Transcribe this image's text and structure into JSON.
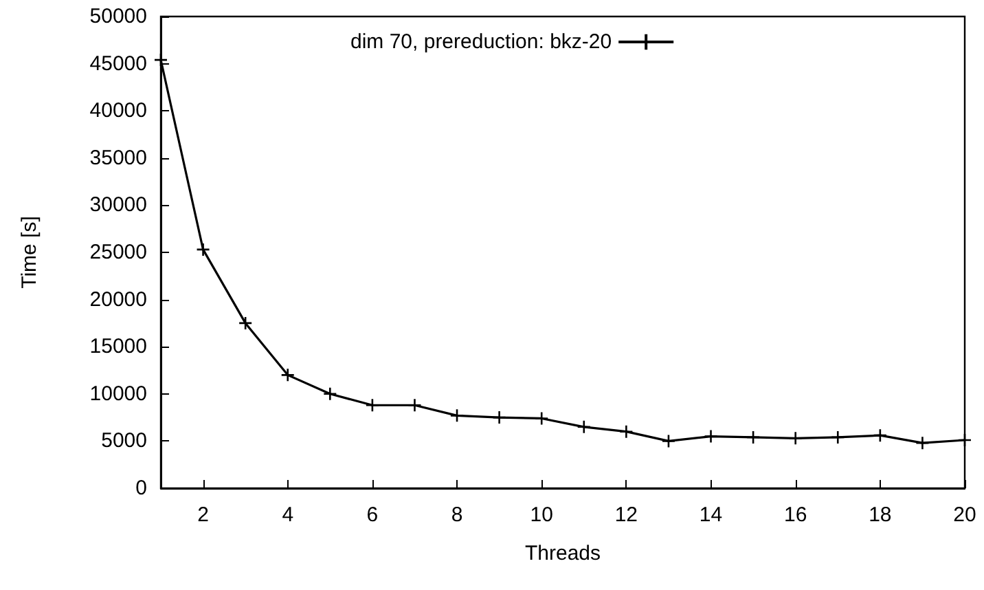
{
  "chart_data": {
    "type": "line",
    "xlabel": "Threads",
    "ylabel": "Time [s]",
    "x": [
      1,
      2,
      3,
      4,
      5,
      6,
      7,
      8,
      9,
      10,
      11,
      12,
      13,
      14,
      15,
      16,
      17,
      18,
      19,
      20
    ],
    "series": [
      {
        "name": "dim 70, prereduction: bkz-20",
        "color": "#000000",
        "values": [
          45400,
          25300,
          17500,
          12000,
          10000,
          8800,
          8800,
          7700,
          7500,
          7400,
          6500,
          6000,
          5000,
          5500,
          5400,
          5300,
          5400,
          5600,
          4800,
          5100
        ]
      }
    ],
    "xlim": [
      1,
      20
    ],
    "xticks": [
      2,
      4,
      6,
      8,
      10,
      12,
      14,
      16,
      18,
      20
    ],
    "ylim": [
      0,
      50000
    ],
    "yticks": [
      0,
      5000,
      10000,
      15000,
      20000,
      25000,
      30000,
      35000,
      40000,
      45000,
      50000
    ],
    "grid": false,
    "legend": "top",
    "marker": "cross",
    "line_style": "solid"
  }
}
